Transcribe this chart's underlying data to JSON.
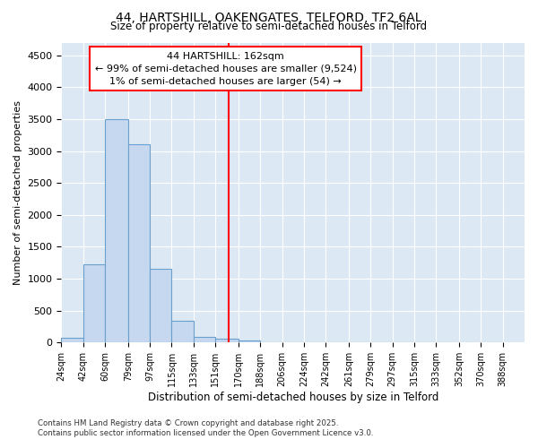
{
  "title": "44, HARTSHILL, OAKENGATES, TELFORD, TF2 6AL",
  "subtitle": "Size of property relative to semi-detached houses in Telford",
  "xlabel": "Distribution of semi-detached houses by size in Telford",
  "ylabel": "Number of semi-detached properties",
  "bin_labels": [
    "24sqm",
    "42sqm",
    "60sqm",
    "79sqm",
    "97sqm",
    "115sqm",
    "133sqm",
    "151sqm",
    "170sqm",
    "188sqm",
    "206sqm",
    "224sqm",
    "242sqm",
    "261sqm",
    "279sqm",
    "297sqm",
    "315sqm",
    "333sqm",
    "352sqm",
    "370sqm",
    "388sqm"
  ],
  "bin_edges": [
    24,
    42,
    60,
    79,
    97,
    115,
    133,
    151,
    170,
    188,
    206,
    224,
    242,
    261,
    279,
    297,
    315,
    333,
    352,
    370,
    388
  ],
  "bar_heights": [
    80,
    1220,
    3500,
    3100,
    1150,
    340,
    90,
    55,
    30,
    10,
    5,
    3,
    2,
    1,
    0,
    0,
    0,
    0,
    0,
    0
  ],
  "bar_color": "#c5d8ef",
  "bar_edge_color": "#6aa0cd",
  "property_line_x": 162,
  "property_line_color": "red",
  "annotation_title": "44 HARTSHILL: 162sqm",
  "annotation_line1": "← 99% of semi-detached houses are smaller (9,524)",
  "annotation_line2": "1% of semi-detached houses are larger (54) →",
  "annotation_box_color": "white",
  "annotation_box_edgecolor": "red",
  "ylim": [
    0,
    4700
  ],
  "yticks": [
    0,
    500,
    1000,
    1500,
    2000,
    2500,
    3000,
    3500,
    4000,
    4500
  ],
  "background_color": "#dce9f5",
  "footnote1": "Contains HM Land Registry data © Crown copyright and database right 2025.",
  "footnote2": "Contains public sector information licensed under the Open Government Licence v3.0."
}
